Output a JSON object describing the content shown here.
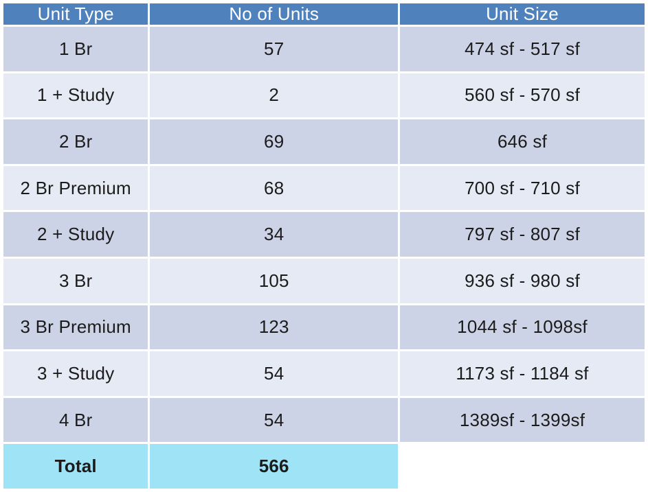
{
  "colors": {
    "header_bg": "#4F81BD",
    "header_text": "#FFFFFF",
    "row_odd": "#CCD3E6",
    "row_even": "#E6EAF4",
    "total_bg": "#9EE4F6",
    "body_text": "#1B1B1B"
  },
  "table": {
    "columns": [
      "Unit Type",
      "No of Units",
      "Unit Size"
    ],
    "rows": [
      [
        "1 Br",
        "57",
        "474 sf - 517 sf"
      ],
      [
        "1 + Study",
        "2",
        "560 sf - 570 sf"
      ],
      [
        "2 Br",
        "69",
        "646 sf"
      ],
      [
        "2 Br Premium",
        "68",
        "700 sf - 710 sf"
      ],
      [
        "2 + Study",
        "34",
        "797 sf - 807 sf"
      ],
      [
        "3 Br",
        "105",
        "936 sf - 980 sf"
      ],
      [
        "3 Br Premium",
        "123",
        "1044 sf - 1098sf"
      ],
      [
        "3 + Study",
        "54",
        "1173 sf - 1184 sf"
      ],
      [
        "4 Br",
        "54",
        "1389sf - 1399sf"
      ]
    ],
    "total": {
      "label": "Total",
      "value": "566"
    }
  },
  "chart_data": {
    "type": "table",
    "title": "",
    "columns": [
      "Unit Type",
      "No of Units",
      "Unit Size"
    ],
    "rows": [
      {
        "unit_type": "1 Br",
        "no_of_units": 57,
        "unit_size": "474 sf - 517 sf"
      },
      {
        "unit_type": "1 + Study",
        "no_of_units": 2,
        "unit_size": "560 sf - 570 sf"
      },
      {
        "unit_type": "2 Br",
        "no_of_units": 69,
        "unit_size": "646 sf"
      },
      {
        "unit_type": "2 Br Premium",
        "no_of_units": 68,
        "unit_size": "700 sf - 710 sf"
      },
      {
        "unit_type": "2 + Study",
        "no_of_units": 34,
        "unit_size": "797 sf - 807 sf"
      },
      {
        "unit_type": "3 Br",
        "no_of_units": 105,
        "unit_size": "936 sf - 980 sf"
      },
      {
        "unit_type": "3 Br Premium",
        "no_of_units": 123,
        "unit_size": "1044 sf - 1098sf"
      },
      {
        "unit_type": "3 + Study",
        "no_of_units": 54,
        "unit_size": "1173 sf - 1184 sf"
      },
      {
        "unit_type": "4 Br",
        "no_of_units": 54,
        "unit_size": "1389sf - 1399sf"
      }
    ],
    "total_row": {
      "label": "Total",
      "no_of_units": 566,
      "unit_size": ""
    },
    "layout_hints": {
      "header_style": "blue banded header, white text",
      "row_striping": "alternating lavender shades",
      "total_style": "cyan highlight on first two columns only"
    }
  }
}
